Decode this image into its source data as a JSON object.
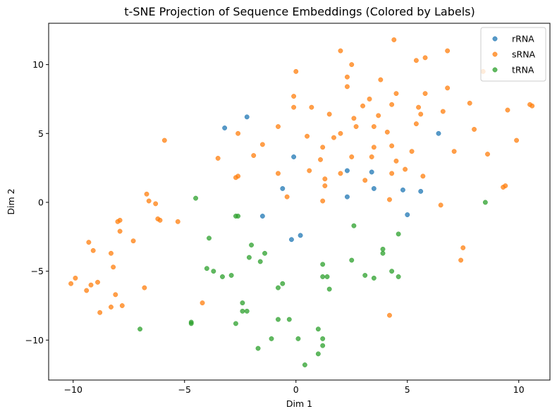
{
  "chart_data": {
    "type": "scatter",
    "title": "t-SNE Projection of Sequence Embeddings (Colored by Labels)",
    "xlabel": "Dim 1",
    "ylabel": "Dim 2",
    "xlim": [
      -11.1,
      11.4
    ],
    "ylim": [
      -12.9,
      13.0
    ],
    "xticks": [
      -10,
      -5,
      0,
      5,
      10
    ],
    "xtick_labels": [
      "−10",
      "−5",
      "0",
      "5",
      "10"
    ],
    "yticks": [
      -10,
      -5,
      0,
      5,
      10
    ],
    "ytick_labels": [
      "−10",
      "−5",
      "0",
      "5",
      "10"
    ],
    "grid": false,
    "legend_position": "top-right",
    "series": [
      {
        "name": "rRNA",
        "color": "#1f77b4",
        "points": [
          [
            -3.2,
            5.4
          ],
          [
            -2.2,
            6.2
          ],
          [
            -0.1,
            3.3
          ],
          [
            -0.6,
            1.0
          ],
          [
            -1.5,
            -1.0
          ],
          [
            -0.2,
            -2.7
          ],
          [
            0.2,
            -2.4
          ],
          [
            2.3,
            2.3
          ],
          [
            2.3,
            0.4
          ],
          [
            3.4,
            2.2
          ],
          [
            3.5,
            1.0
          ],
          [
            4.8,
            0.9
          ],
          [
            5.0,
            -0.9
          ],
          [
            5.6,
            0.8
          ],
          [
            6.4,
            5.0
          ]
        ]
      },
      {
        "name": "sRNA",
        "color": "#ff7f0e",
        "points": [
          [
            2.0,
            11.0
          ],
          [
            2.5,
            10.0
          ],
          [
            4.4,
            11.8
          ],
          [
            6.8,
            11.0
          ],
          [
            5.8,
            10.5
          ],
          [
            5.4,
            10.3
          ],
          [
            8.4,
            9.5
          ],
          [
            2.3,
            9.1
          ],
          [
            0.0,
            9.5
          ],
          [
            3.8,
            8.9
          ],
          [
            2.3,
            8.4
          ],
          [
            4.5,
            7.9
          ],
          [
            5.8,
            7.9
          ],
          [
            6.8,
            8.3
          ],
          [
            -0.1,
            7.7
          ],
          [
            3.3,
            7.5
          ],
          [
            4.3,
            7.1
          ],
          [
            0.7,
            6.9
          ],
          [
            -0.1,
            6.9
          ],
          [
            7.8,
            7.2
          ],
          [
            10.5,
            7.1
          ],
          [
            10.6,
            7.0
          ],
          [
            9.5,
            6.7
          ],
          [
            1.5,
            6.4
          ],
          [
            3.0,
            7.0
          ],
          [
            2.6,
            6.1
          ],
          [
            3.7,
            6.3
          ],
          [
            5.5,
            6.9
          ],
          [
            5.6,
            6.4
          ],
          [
            6.6,
            6.6
          ],
          [
            -0.8,
            5.5
          ],
          [
            2.7,
            5.5
          ],
          [
            3.5,
            5.5
          ],
          [
            5.4,
            5.7
          ],
          [
            8.0,
            5.3
          ],
          [
            -2.6,
            5.0
          ],
          [
            0.5,
            4.8
          ],
          [
            1.7,
            4.7
          ],
          [
            2.0,
            5.0
          ],
          [
            4.1,
            5.1
          ],
          [
            -5.9,
            4.5
          ],
          [
            -1.5,
            4.2
          ],
          [
            1.2,
            4.0
          ],
          [
            3.5,
            4.0
          ],
          [
            4.3,
            4.1
          ],
          [
            -3.5,
            3.2
          ],
          [
            -1.9,
            3.4
          ],
          [
            1.1,
            3.1
          ],
          [
            2.5,
            3.3
          ],
          [
            3.4,
            3.3
          ],
          [
            4.5,
            3.0
          ],
          [
            5.2,
            3.7
          ],
          [
            7.1,
            3.7
          ],
          [
            8.6,
            3.5
          ],
          [
            9.9,
            4.5
          ],
          [
            -2.7,
            1.8
          ],
          [
            -2.6,
            1.9
          ],
          [
            -0.8,
            2.1
          ],
          [
            0.6,
            2.3
          ],
          [
            2.0,
            2.1
          ],
          [
            3.1,
            1.6
          ],
          [
            4.3,
            2.1
          ],
          [
            4.9,
            2.4
          ],
          [
            5.7,
            1.9
          ],
          [
            1.3,
            1.7
          ],
          [
            1.3,
            1.2
          ],
          [
            -6.7,
            0.6
          ],
          [
            -6.6,
            0.1
          ],
          [
            -6.3,
            -0.1
          ],
          [
            -0.4,
            0.4
          ],
          [
            1.2,
            0.1
          ],
          [
            4.2,
            0.2
          ],
          [
            6.5,
            -0.2
          ],
          [
            9.3,
            1.1
          ],
          [
            9.4,
            1.2
          ],
          [
            -6.2,
            -1.2
          ],
          [
            -6.1,
            -1.3
          ],
          [
            -5.3,
            -1.4
          ],
          [
            -8.0,
            -1.4
          ],
          [
            -7.9,
            -1.3
          ],
          [
            -7.9,
            -2.1
          ],
          [
            -7.3,
            -2.8
          ],
          [
            -9.3,
            -2.9
          ],
          [
            -9.1,
            -3.5
          ],
          [
            -8.3,
            -3.7
          ],
          [
            -8.2,
            -4.7
          ],
          [
            7.5,
            -3.3
          ],
          [
            7.4,
            -4.2
          ],
          [
            -10.1,
            -5.9
          ],
          [
            -9.9,
            -5.5
          ],
          [
            -9.2,
            -6.0
          ],
          [
            -8.9,
            -5.8
          ],
          [
            -9.4,
            -6.4
          ],
          [
            -6.8,
            -6.2
          ],
          [
            -8.1,
            -6.7
          ],
          [
            -8.8,
            -8.0
          ],
          [
            -8.3,
            -7.6
          ],
          [
            -7.8,
            -7.5
          ],
          [
            -4.2,
            -7.3
          ],
          [
            4.2,
            -8.2
          ]
        ]
      },
      {
        "name": "tRNA",
        "color": "#2ca02c",
        "points": [
          [
            -4.5,
            0.3
          ],
          [
            -2.7,
            -1.0
          ],
          [
            -2.6,
            -1.0
          ],
          [
            -3.9,
            -2.6
          ],
          [
            8.5,
            0.0
          ],
          [
            2.6,
            -1.7
          ],
          [
            4.6,
            -2.3
          ],
          [
            -2.0,
            -3.1
          ],
          [
            -4.0,
            -4.8
          ],
          [
            -3.7,
            -5.0
          ],
          [
            -3.3,
            -5.4
          ],
          [
            -2.9,
            -5.3
          ],
          [
            -2.1,
            -4.0
          ],
          [
            -1.6,
            -4.3
          ],
          [
            -1.4,
            -3.7
          ],
          [
            1.2,
            -4.5
          ],
          [
            1.2,
            -5.4
          ],
          [
            1.4,
            -5.4
          ],
          [
            1.5,
            -6.3
          ],
          [
            2.5,
            -4.2
          ],
          [
            3.1,
            -5.3
          ],
          [
            3.5,
            -5.5
          ],
          [
            3.9,
            -3.7
          ],
          [
            3.9,
            -3.4
          ],
          [
            4.3,
            -5.0
          ],
          [
            4.6,
            -5.4
          ],
          [
            -0.6,
            -5.9
          ],
          [
            -0.8,
            -6.2
          ],
          [
            -2.4,
            -7.3
          ],
          [
            -2.4,
            -7.9
          ],
          [
            -2.2,
            -7.9
          ],
          [
            -2.7,
            -8.8
          ],
          [
            -4.7,
            -8.7
          ],
          [
            -4.7,
            -8.8
          ],
          [
            -7.0,
            -9.2
          ],
          [
            -0.8,
            -8.5
          ],
          [
            -0.3,
            -8.5
          ],
          [
            1.0,
            -9.2
          ],
          [
            1.2,
            -9.9
          ],
          [
            1.2,
            -10.4
          ],
          [
            0.1,
            -9.9
          ],
          [
            -1.1,
            -9.9
          ],
          [
            -1.7,
            -10.6
          ],
          [
            1.0,
            -11.0
          ],
          [
            0.4,
            -11.8
          ]
        ]
      }
    ]
  }
}
